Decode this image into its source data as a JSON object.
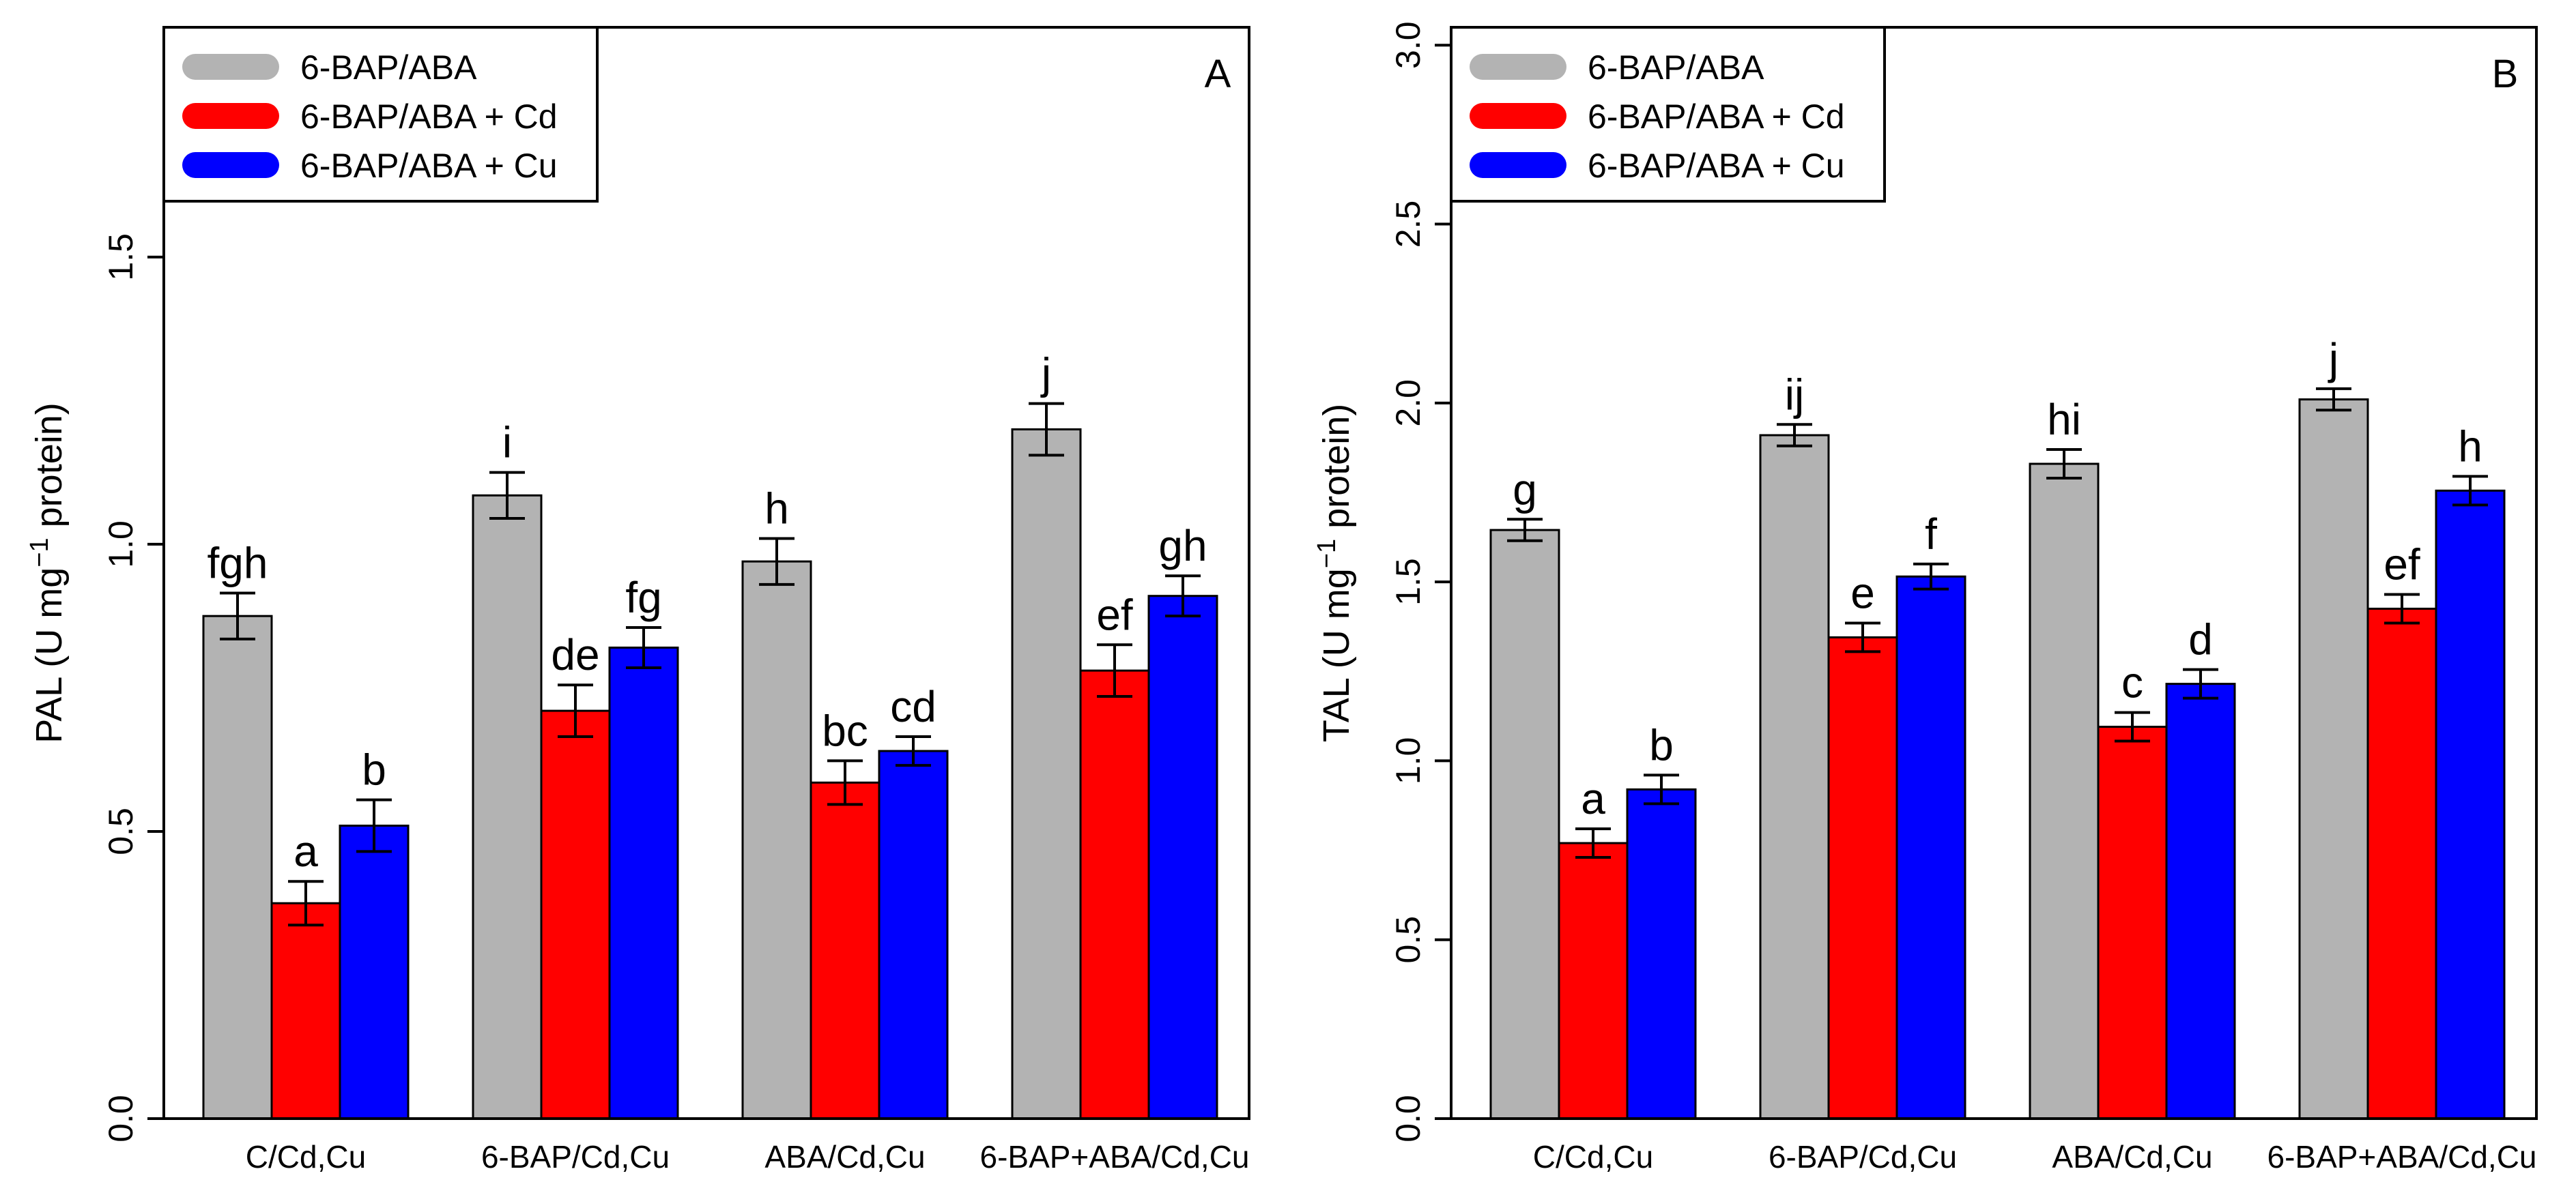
{
  "colors": {
    "gray": "#b3b3b3",
    "red": "#ff0000",
    "blue": "#0000ff"
  },
  "chart_data": [
    {
      "type": "bar",
      "panel_label": "A",
      "ylabel": {
        "prefix": "PAL (U mg",
        "sup": "−1",
        "suffix": " protein)"
      },
      "ylim": [
        0,
        1.9
      ],
      "yticks": [
        "0.0",
        "0.5",
        "1.0",
        "1.5"
      ],
      "categories": [
        "C/Cd,Cu",
        "6-BAP/Cd,Cu",
        "ABA/Cd,Cu",
        "6-BAP+ABA/Cd,Cu"
      ],
      "legend": {
        "position": "top-left",
        "entries": [
          "6-BAP/ABA",
          "6-BAP/ABA + Cd",
          "6-BAP/ABA + Cu"
        ]
      },
      "series": [
        {
          "name": "6-BAP/ABA",
          "color": "#b3b3b3",
          "values": [
            0.875,
            1.085,
            0.97,
            1.2
          ],
          "errors": [
            0.04,
            0.04,
            0.04,
            0.045
          ],
          "labels": [
            "fgh",
            "i",
            "h",
            "j"
          ]
        },
        {
          "name": "6-BAP/ABA + Cd",
          "color": "#ff0000",
          "values": [
            0.375,
            0.71,
            0.585,
            0.78
          ],
          "errors": [
            0.038,
            0.045,
            0.038,
            0.045
          ],
          "labels": [
            "a",
            "de",
            "bc",
            "ef"
          ]
        },
        {
          "name": "6-BAP/ABA + Cu",
          "color": "#0000ff",
          "values": [
            0.51,
            0.82,
            0.64,
            0.91
          ],
          "errors": [
            0.045,
            0.035,
            0.025,
            0.035
          ],
          "labels": [
            "b",
            "fg",
            "cd",
            "gh"
          ]
        }
      ]
    },
    {
      "type": "bar",
      "panel_label": "B",
      "ylabel": {
        "prefix": "TAL (U mg",
        "sup": "−1",
        "suffix": " protein)"
      },
      "ylim": [
        0,
        3.05
      ],
      "yticks": [
        "0.0",
        "0.5",
        "1.0",
        "1.5",
        "2.0",
        "2.5",
        "3.0"
      ],
      "categories": [
        "C/Cd,Cu",
        "6-BAP/Cd,Cu",
        "ABA/Cd,Cu",
        "6-BAP+ABA/Cd,Cu"
      ],
      "legend": {
        "position": "top-left",
        "entries": [
          "6-BAP/ABA",
          "6-BAP/ABA + Cd",
          "6-BAP/ABA + Cu"
        ]
      },
      "series": [
        {
          "name": "6-BAP/ABA",
          "color": "#b3b3b3",
          "values": [
            1.645,
            1.91,
            1.83,
            2.01
          ],
          "errors": [
            0.03,
            0.03,
            0.04,
            0.03
          ],
          "labels": [
            "g",
            "ij",
            "hi",
            "j"
          ]
        },
        {
          "name": "6-BAP/ABA + Cd",
          "color": "#ff0000",
          "values": [
            0.77,
            1.345,
            1.095,
            1.425
          ],
          "errors": [
            0.04,
            0.04,
            0.04,
            0.04
          ],
          "labels": [
            "a",
            "e",
            "c",
            "ef"
          ]
        },
        {
          "name": "6-BAP/ABA + Cu",
          "color": "#0000ff",
          "values": [
            0.92,
            1.515,
            1.215,
            1.755
          ],
          "errors": [
            0.04,
            0.035,
            0.04,
            0.04
          ],
          "labels": [
            "b",
            "f",
            "d",
            "h"
          ]
        }
      ]
    }
  ]
}
